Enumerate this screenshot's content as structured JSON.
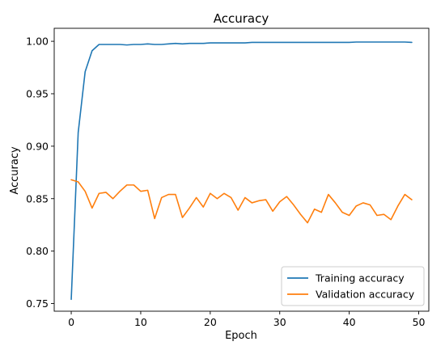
{
  "chart_data": {
    "type": "line",
    "title": "Accuracy",
    "xlabel": "Epoch",
    "ylabel": "Accuracy",
    "xlim": [
      -2.45,
      51.45
    ],
    "ylim": [
      0.7427,
      1.0124
    ],
    "xticks": [
      0,
      10,
      20,
      30,
      40,
      50
    ],
    "yticks": [
      0.75,
      0.8,
      0.85,
      0.9,
      0.95,
      1.0
    ],
    "ytick_labels": [
      "0.75",
      "0.80",
      "0.85",
      "0.90",
      "0.95",
      "1.00"
    ],
    "grid": false,
    "legend_position": "lower right",
    "x": [
      0,
      1,
      2,
      3,
      4,
      5,
      6,
      7,
      8,
      9,
      10,
      11,
      12,
      13,
      14,
      15,
      16,
      17,
      18,
      19,
      20,
      21,
      22,
      23,
      24,
      25,
      26,
      27,
      28,
      29,
      30,
      31,
      32,
      33,
      34,
      35,
      36,
      37,
      38,
      39,
      40,
      41,
      42,
      43,
      44,
      45,
      46,
      47,
      48,
      49
    ],
    "series": [
      {
        "name": "Training accuracy",
        "color": "#1f77b4",
        "values": [
          0.754,
          0.913,
          0.971,
          0.991,
          0.997,
          0.997,
          0.997,
          0.997,
          0.9965,
          0.997,
          0.997,
          0.9975,
          0.997,
          0.997,
          0.9975,
          0.998,
          0.9975,
          0.998,
          0.998,
          0.998,
          0.9985,
          0.9985,
          0.9985,
          0.9985,
          0.9985,
          0.9985,
          0.999,
          0.999,
          0.999,
          0.999,
          0.999,
          0.999,
          0.999,
          0.999,
          0.999,
          0.999,
          0.999,
          0.999,
          0.999,
          0.999,
          0.999,
          0.9993,
          0.9993,
          0.9993,
          0.9993,
          0.9993,
          0.9993,
          0.9993,
          0.9993,
          0.999
        ]
      },
      {
        "name": "Validation accuracy",
        "color": "#ff7f0e",
        "values": [
          0.868,
          0.866,
          0.857,
          0.841,
          0.855,
          0.856,
          0.85,
          0.857,
          0.863,
          0.863,
          0.857,
          0.858,
          0.831,
          0.851,
          0.854,
          0.854,
          0.832,
          0.841,
          0.851,
          0.842,
          0.855,
          0.85,
          0.855,
          0.851,
          0.839,
          0.851,
          0.846,
          0.848,
          0.849,
          0.838,
          0.847,
          0.852,
          0.844,
          0.835,
          0.827,
          0.84,
          0.837,
          0.854,
          0.846,
          0.837,
          0.834,
          0.843,
          0.846,
          0.844,
          0.834,
          0.835,
          0.83,
          0.843,
          0.854,
          0.849
        ]
      }
    ]
  }
}
